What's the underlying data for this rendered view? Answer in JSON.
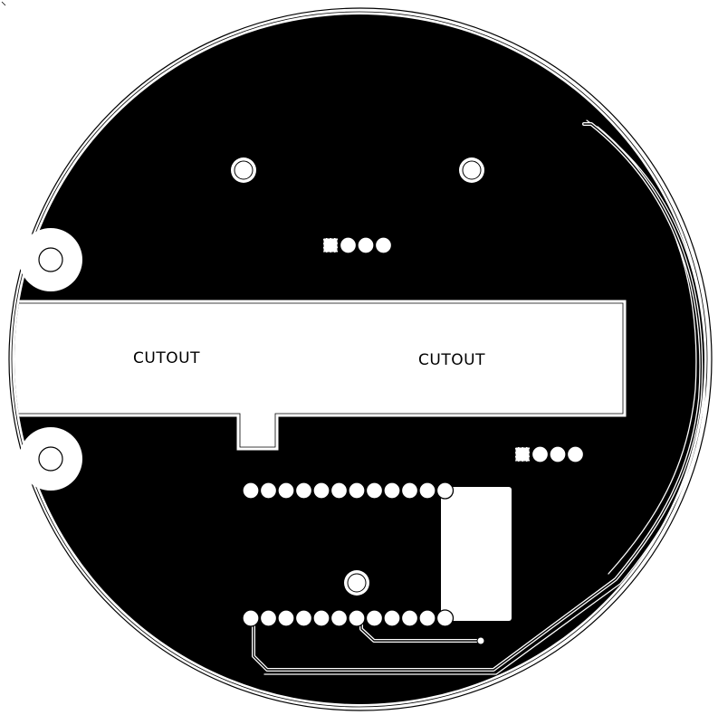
{
  "board": {
    "type": "pcb-layout-circular",
    "colors": {
      "copper": "#000000",
      "background": "#ffffff",
      "outline": "#000000"
    },
    "cutout_labels": [
      "CUTOUT",
      "CUTOUT"
    ],
    "header_pin_counts": {
      "top_connector": 4,
      "right_connector": 4,
      "ic_top_row": 12,
      "ic_bottom_row": 12
    }
  }
}
